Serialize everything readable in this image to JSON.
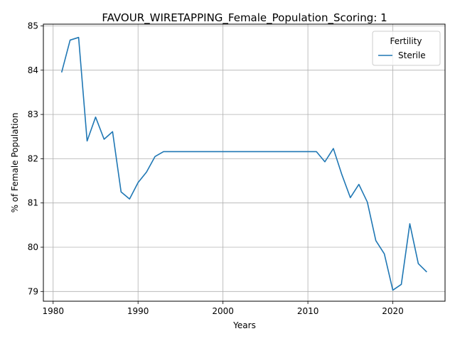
{
  "chart_data": {
    "type": "line",
    "title": "FAVOUR_WIRETAPPING_Female_Population_Scoring: 1",
    "xlabel": "Years",
    "ylabel": "% of Female Population",
    "xlim": [
      1978.85,
      2026.15
    ],
    "ylim": [
      78.78,
      85.04
    ],
    "xticks": [
      1980,
      1990,
      2000,
      2010,
      2020
    ],
    "yticks": [
      79,
      80,
      81,
      82,
      83,
      84,
      85
    ],
    "grid": true,
    "legend": {
      "title": "Fertility",
      "position": "top-right"
    },
    "series": [
      {
        "name": "Sterile",
        "color": "#1f77b4",
        "x": [
          1981,
          1982,
          1983,
          1984,
          1985,
          1986,
          1987,
          1988,
          1989,
          1990,
          1991,
          1992,
          1993,
          1994,
          1995,
          1996,
          1997,
          1998,
          1999,
          2000,
          2001,
          2002,
          2003,
          2004,
          2005,
          2006,
          2007,
          2008,
          2009,
          2010,
          2011,
          2012,
          2013,
          2014,
          2015,
          2016,
          2017,
          2018,
          2019,
          2020,
          2021,
          2022,
          2023,
          2024
        ],
        "y": [
          83.95,
          84.68,
          84.74,
          82.4,
          82.94,
          82.44,
          82.61,
          81.25,
          81.09,
          81.46,
          81.7,
          82.05,
          82.16,
          82.16,
          82.16,
          82.16,
          82.16,
          82.16,
          82.16,
          82.16,
          82.16,
          82.16,
          82.16,
          82.16,
          82.16,
          82.16,
          82.16,
          82.16,
          82.16,
          82.16,
          82.16,
          81.93,
          82.23,
          81.64,
          81.12,
          81.42,
          81.02,
          80.15,
          79.85,
          79.03,
          79.16,
          80.53,
          79.63,
          79.44
        ]
      }
    ]
  }
}
